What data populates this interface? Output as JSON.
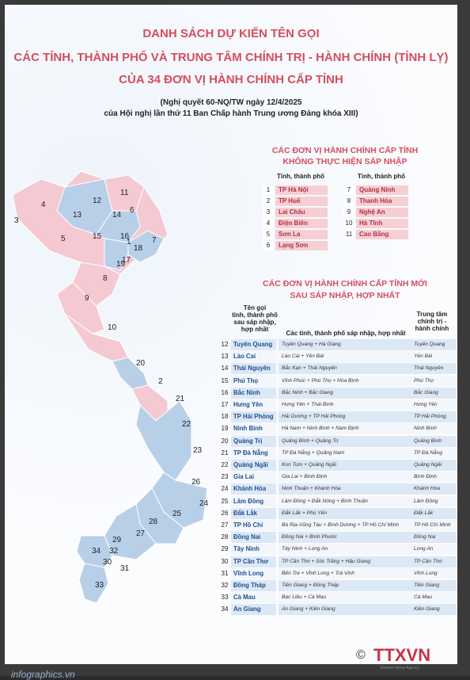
{
  "title_lines": [
    "DANH SÁCH DỰ KIẾN TÊN GỌI",
    "CÁC TỈNH, THÀNH PHỐ VÀ TRUNG TÂM CHÍNH TRỊ - HÀNH CHÍNH (TỈNH LỴ)",
    "CỦA 34 ĐƠN VỊ HÀNH CHÍNH CẤP TỈNH"
  ],
  "subtitle_lines": [
    "(Nghị quyết 60-NQ/TW ngày 12/4/2025",
    "của Hội nghị lần thứ 11 Ban Chấp hành Trung ương Đảng khóa XIII)"
  ],
  "section_a": {
    "line1": "CÁC ĐƠN VỊ HÀNH CHÍNH CẤP TỈNH",
    "line2": "KHÔNG THỰC HIỆN SÁP NHẬP",
    "col_header": "Tỉnh, thành phố",
    "left": [
      {
        "n": "1",
        "name": "TP Hà Nội"
      },
      {
        "n": "2",
        "name": "TP Huế"
      },
      {
        "n": "3",
        "name": "Lai Châu"
      },
      {
        "n": "4",
        "name": "Điện Biên"
      },
      {
        "n": "5",
        "name": "Sơn La"
      },
      {
        "n": "6",
        "name": "Lạng Sơn"
      }
    ],
    "right": [
      {
        "n": "7",
        "name": "Quảng Ninh"
      },
      {
        "n": "8",
        "name": "Thanh Hóa"
      },
      {
        "n": "9",
        "name": "Nghệ An"
      },
      {
        "n": "10",
        "name": "Hà Tĩnh"
      },
      {
        "n": "11",
        "name": "Cao Bằng"
      }
    ]
  },
  "section_b": {
    "line1": "CÁC ĐƠN VỊ HÀNH CHÍNH CẤP TỈNH MỚI",
    "line2": "SAU SÁP NHẬP, HỢP NHẤT",
    "head_name": [
      "Tên gọi",
      "tỉnh, thành phố",
      "sau sáp nhập,",
      "hợp nhất"
    ],
    "head_merge": "Các tỉnh, thành phố sáp nhập, hợp nhất",
    "head_cap": [
      "Trung tâm",
      "chính trị -",
      "hành chính"
    ],
    "rows": [
      {
        "n": "12",
        "name": "Tuyên Quang",
        "merge": "Tuyên Quang + Hà Giang",
        "cap": "Tuyên Quang"
      },
      {
        "n": "13",
        "name": "Lào Cai",
        "merge": "Lào Cai + Yên Bái",
        "cap": "Yên Bái"
      },
      {
        "n": "14",
        "name": "Thái Nguyên",
        "merge": "Bắc Kạn + Thái Nguyên",
        "cap": "Thái Nguyên"
      },
      {
        "n": "15",
        "name": "Phú Thọ",
        "merge": "Vĩnh Phúc + Phú Thọ + Hòa Bình",
        "cap": "Phú Thọ"
      },
      {
        "n": "16",
        "name": "Bắc Ninh",
        "merge": "Bắc Ninh + Bắc Giang",
        "cap": "Bắc Giang"
      },
      {
        "n": "17",
        "name": "Hưng Yên",
        "merge": "Hưng Yên + Thái Bình",
        "cap": "Hưng Yên"
      },
      {
        "n": "18",
        "name": "TP Hải Phòng",
        "merge": "Hải Dương + TP Hải Phòng",
        "cap": "TP Hải Phòng"
      },
      {
        "n": "19",
        "name": "Ninh Bình",
        "merge": "Hà Nam + Ninh Bình + Nam Định",
        "cap": "Ninh Bình"
      },
      {
        "n": "20",
        "name": "Quảng Trị",
        "merge": "Quảng Bình + Quảng Trị",
        "cap": "Quảng Bình"
      },
      {
        "n": "21",
        "name": "TP Đà Nẵng",
        "merge": "TP Đà Nẵng + Quảng Nam",
        "cap": "TP Đà Nẵng"
      },
      {
        "n": "22",
        "name": "Quảng Ngãi",
        "merge": "Kon Tum + Quảng Ngãi",
        "cap": "Quảng Ngãi"
      },
      {
        "n": "23",
        "name": "Gia Lai",
        "merge": "Gia Lai + Bình Định",
        "cap": "Bình Định"
      },
      {
        "n": "24",
        "name": "Khánh Hòa",
        "merge": "Ninh Thuận + Khánh Hòa",
        "cap": "Khánh Hòa"
      },
      {
        "n": "25",
        "name": "Lâm Đồng",
        "merge": "Lâm Đồng + Đắk Nông + Bình Thuận",
        "cap": "Lâm Đồng"
      },
      {
        "n": "26",
        "name": "Đắk Lắk",
        "merge": "Đắk Lắk + Phú Yên",
        "cap": "Đắk Lắk"
      },
      {
        "n": "27",
        "name": "TP Hồ Chí Minh",
        "merge": "Bà Rịa-Vũng Tàu + Bình Dương + TP Hồ Chí Minh",
        "cap": "TP Hồ Chí Minh"
      },
      {
        "n": "28",
        "name": "Đồng Nai",
        "merge": "Đồng Nai + Bình Phước",
        "cap": "Đồng Nai"
      },
      {
        "n": "29",
        "name": "Tây Ninh",
        "merge": "Tây Ninh + Long An",
        "cap": "Long An"
      },
      {
        "n": "30",
        "name": "TP Cần Thơ",
        "merge": "TP Cần Thơ + Sóc Trăng + Hậu Giang",
        "cap": "TP Cần Thơ"
      },
      {
        "n": "31",
        "name": "Vĩnh Long",
        "merge": "Bến Tre + Vĩnh Long + Trà Vinh",
        "cap": "Vĩnh Long"
      },
      {
        "n": "32",
        "name": "Đồng Tháp",
        "merge": "Tiền Giang + Đồng Tháp",
        "cap": "Tiền Giang"
      },
      {
        "n": "33",
        "name": "Cà Mau",
        "merge": "Bạc Liêu + Cà Mau",
        "cap": "Cà Mau"
      },
      {
        "n": "34",
        "name": "An Giang",
        "merge": "An Giang + Kiên Giang",
        "cap": "Kiên Giang"
      }
    ]
  },
  "map_numbers": [
    "1",
    "2",
    "3",
    "4",
    "5",
    "6",
    "7",
    "8",
    "9",
    "10",
    "11",
    "12",
    "13",
    "14",
    "15",
    "16",
    "17",
    "18",
    "19",
    "20",
    "21",
    "22",
    "23",
    "24",
    "25",
    "26",
    "27",
    "28",
    "29",
    "30",
    "31",
    "32",
    "33",
    "34"
  ],
  "footer": "infographics.vn",
  "logo": "TTXVN",
  "logo_sub": "Vietnam News Agency",
  "copyright": "©"
}
